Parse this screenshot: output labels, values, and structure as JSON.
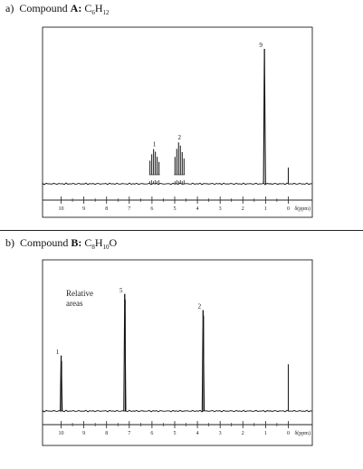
{
  "chart_data": [
    {
      "type": "line",
      "panel_label": "a)",
      "title_prefix": "Compound ",
      "compound_letter": "A",
      "formula": [
        {
          "t": "C",
          "sub": false
        },
        {
          "t": "6",
          "sub": true
        },
        {
          "t": "H",
          "sub": false
        },
        {
          "t": "12",
          "sub": true
        }
      ],
      "xlabel": "δ(ppm)",
      "xlim": [
        10.3,
        -0.5
      ],
      "x_ticks": [
        "10",
        "9",
        "8",
        "7",
        "6",
        "5",
        "4",
        "3",
        "2",
        "1",
        "0"
      ],
      "peaks": [
        {
          "shift": 1.05,
          "height": 1.0,
          "label": "9"
        },
        {
          "shift": 5.85,
          "height": 0.19,
          "label": "1"
        },
        {
          "shift": 4.75,
          "height": 0.24,
          "label": "2"
        }
      ],
      "reference_peak": {
        "shift": 0.0,
        "height": 0.12
      }
    },
    {
      "type": "line",
      "panel_label": "b)",
      "title_prefix": "Compound ",
      "compound_letter": "B",
      "formula": [
        {
          "t": "C",
          "sub": false
        },
        {
          "t": "8",
          "sub": true
        },
        {
          "t": "H",
          "sub": false
        },
        {
          "t": "10",
          "sub": true
        },
        {
          "t": "O",
          "sub": false
        }
      ],
      "xlabel": "δ(ppm)",
      "annotation": [
        "Relative",
        "areas"
      ],
      "xlim": [
        10.3,
        -0.5
      ],
      "x_ticks": [
        "10",
        "9",
        "8",
        "7",
        "6",
        "5",
        "4",
        "3",
        "2",
        "1",
        "0"
      ],
      "peaks": [
        {
          "shift": 10.0,
          "height": 0.45,
          "label": "1"
        },
        {
          "shift": 7.2,
          "height": 0.95,
          "label": "5"
        },
        {
          "shift": 3.75,
          "height": 0.82,
          "label": "2"
        }
      ],
      "reference_peak": {
        "shift": 0.0,
        "height": 0.38
      }
    }
  ]
}
